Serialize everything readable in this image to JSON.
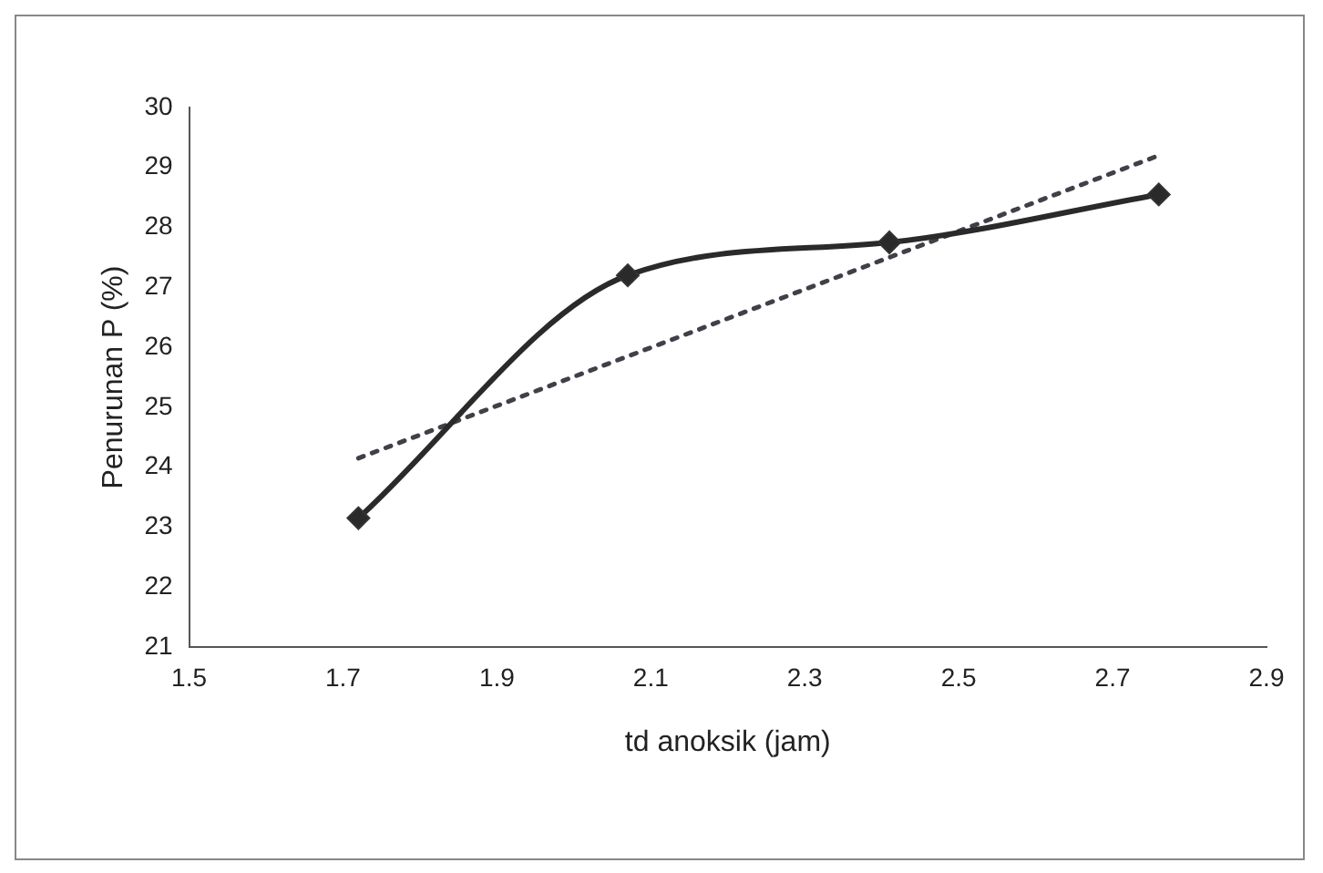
{
  "chart_data": {
    "type": "line",
    "xlabel": "td anoksik (jam)",
    "ylabel": "Penurunan P (%)",
    "xlim": [
      1.5,
      2.9
    ],
    "xticks": [
      {
        "value": 1.5,
        "label": "1.5"
      },
      {
        "value": 1.7,
        "label": "1.7"
      },
      {
        "value": 1.9,
        "label": "1.9"
      },
      {
        "value": 2.1,
        "label": "2.1"
      },
      {
        "value": 2.3,
        "label": "2.3"
      },
      {
        "value": 2.5,
        "label": "2.5"
      },
      {
        "value": 2.7,
        "label": "2.7"
      },
      {
        "value": 2.9,
        "label": "2.9"
      }
    ],
    "ylim": [
      21,
      30
    ],
    "yticks": [
      21,
      22,
      23,
      24,
      25,
      26,
      27,
      28,
      29,
      30
    ],
    "grid": false,
    "legend": false,
    "series": [
      {
        "type": "line",
        "color": "#2a2a2a",
        "x": [
          1.72,
          2.07,
          2.41,
          2.76
        ],
        "values": [
          23.15,
          27.2,
          27.75,
          28.55
        ],
        "marker": "diamond",
        "line_style": "solid"
      },
      {
        "type": "line",
        "color": "#404048",
        "x": [
          1.72,
          2.76
        ],
        "values": [
          24.15,
          29.2
        ],
        "marker": "none",
        "line_style": "dotted"
      }
    ]
  }
}
